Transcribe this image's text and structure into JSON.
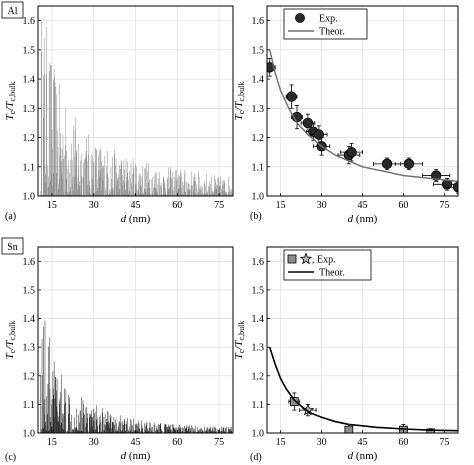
{
  "elements": [
    "Al",
    "Sn"
  ],
  "panel_letters": [
    "(a)",
    "(b)",
    "(c)",
    "(d)"
  ],
  "colors": {
    "al_bars": "#8a8a8a",
    "sn_bars": "#222222",
    "theory_b": "#6e6e6e",
    "theory_d": "#000000",
    "marker_circle": "#2a2a2a",
    "marker_square": "#8c8c8c",
    "marker_star": "#b8b8b8"
  },
  "chart_data": [
    {
      "id": "a",
      "type": "bar",
      "element": "Al",
      "xlabel_var": "d",
      "xlabel_unit": " (nm)",
      "ylabel_main": "T",
      "ylabel_sub1": "c",
      "ylabel_mid": "/T",
      "ylabel_sub2": "c,bulk",
      "xlim": [
        10,
        80
      ],
      "ylim": [
        1.0,
        1.65
      ],
      "xticks": [
        "15",
        "30",
        "45",
        "60",
        "75"
      ],
      "yticks": [
        "1.0",
        "1.1",
        "1.2",
        "1.3",
        "1.4",
        "1.5",
        "1.6"
      ],
      "grid": true,
      "dx": 0.15,
      "x_start": 11.0,
      "x_end": 80.0,
      "envelope": [
        [
          11.0,
          1.66
        ],
        [
          13.0,
          1.6
        ],
        [
          15.0,
          1.48
        ],
        [
          17.0,
          1.4
        ],
        [
          20.0,
          1.33
        ],
        [
          25.0,
          1.25
        ],
        [
          30.0,
          1.2
        ],
        [
          35.0,
          1.17
        ],
        [
          40.0,
          1.15
        ],
        [
          45.0,
          1.13
        ],
        [
          50.0,
          1.12
        ],
        [
          55.0,
          1.1
        ],
        [
          60.0,
          1.1
        ],
        [
          65.0,
          1.09
        ],
        [
          70.0,
          1.08
        ],
        [
          75.0,
          1.07
        ],
        [
          80.0,
          1.07
        ]
      ]
    },
    {
      "id": "b",
      "type": "scatter",
      "element": "Al",
      "xlabel_var": "d",
      "xlabel_unit": " (nm)",
      "ylabel_main": "T",
      "ylabel_sub1": "c",
      "ylabel_mid": "/T",
      "ylabel_sub2": "c,bulk",
      "xlim": [
        10,
        80
      ],
      "ylim": [
        1.0,
        1.65
      ],
      "xticks": [
        "15",
        "30",
        "45",
        "60",
        "75"
      ],
      "yticks": [
        "1.0",
        "1.1",
        "1.2",
        "1.3",
        "1.4",
        "1.5",
        "1.6"
      ],
      "grid": true,
      "legend_position": "top-right",
      "series": [
        {
          "name": "Exp.",
          "marker": "circle",
          "points": [
            {
              "x": 11.0,
              "y": 1.44,
              "xerr": 2.0,
              "yerr": 0.03
            },
            {
              "x": 19.0,
              "y": 1.34,
              "xerr": 2.0,
              "yerr": 0.04
            },
            {
              "x": 21.0,
              "y": 1.27,
              "xerr": 2.0,
              "yerr": 0.04
            },
            {
              "x": 25.0,
              "y": 1.25,
              "xerr": 2.5,
              "yerr": 0.03
            },
            {
              "x": 27.0,
              "y": 1.22,
              "xerr": 2.5,
              "yerr": 0.03
            },
            {
              "x": 29.0,
              "y": 1.21,
              "xerr": 3.0,
              "yerr": 0.03
            },
            {
              "x": 30.0,
              "y": 1.17,
              "xerr": 3.0,
              "yerr": 0.03
            },
            {
              "x": 40.0,
              "y": 1.14,
              "xerr": 4.0,
              "yerr": 0.03
            },
            {
              "x": 41.0,
              "y": 1.15,
              "xerr": 4.0,
              "yerr": 0.03
            },
            {
              "x": 54.0,
              "y": 1.11,
              "xerr": 5.0,
              "yerr": 0.02
            },
            {
              "x": 62.0,
              "y": 1.11,
              "xerr": 5.0,
              "yerr": 0.02
            },
            {
              "x": 72.0,
              "y": 1.07,
              "xerr": 5.0,
              "yerr": 0.02
            },
            {
              "x": 76.0,
              "y": 1.04,
              "xerr": 5.0,
              "yerr": 0.02
            },
            {
              "x": 80.0,
              "y": 1.03,
              "xerr": 5.0,
              "yerr": 0.02
            }
          ]
        },
        {
          "name": "Theor.",
          "type": "line",
          "points": [
            [
              11,
              1.5
            ],
            [
              13,
              1.42
            ],
            [
              15,
              1.36
            ],
            [
              18,
              1.3
            ],
            [
              21,
              1.25
            ],
            [
              25,
              1.21
            ],
            [
              30,
              1.17
            ],
            [
              35,
              1.14
            ],
            [
              40,
              1.12
            ],
            [
              45,
              1.1
            ],
            [
              50,
              1.09
            ],
            [
              55,
              1.08
            ],
            [
              60,
              1.07
            ],
            [
              65,
              1.065
            ],
            [
              70,
              1.06
            ],
            [
              75,
              1.055
            ],
            [
              80,
              1.05
            ]
          ]
        }
      ]
    },
    {
      "id": "c",
      "type": "bar",
      "element": "Sn",
      "xlabel_var": "d",
      "xlabel_unit": " (nm)",
      "ylabel_main": "T",
      "ylabel_sub1": "c",
      "ylabel_mid": "/T",
      "ylabel_sub2": "c,bulk",
      "xlim": [
        10,
        80
      ],
      "ylim": [
        1.0,
        1.65
      ],
      "xticks": [
        "15",
        "30",
        "45",
        "60",
        "75"
      ],
      "yticks": [
        "1.0",
        "1.1",
        "1.2",
        "1.3",
        "1.4",
        "1.5",
        "1.6"
      ],
      "grid": true,
      "dx": 0.15,
      "x_start": 11.0,
      "x_end": 80.0,
      "envelope": [
        [
          11.0,
          1.55
        ],
        [
          13.0,
          1.38
        ],
        [
          15.0,
          1.3
        ],
        [
          18.0,
          1.22
        ],
        [
          20.0,
          1.18
        ],
        [
          25.0,
          1.14
        ],
        [
          30.0,
          1.11
        ],
        [
          35.0,
          1.08
        ],
        [
          40.0,
          1.06
        ],
        [
          45.0,
          1.05
        ],
        [
          50.0,
          1.04
        ],
        [
          60.0,
          1.03
        ],
        [
          70.0,
          1.025
        ],
        [
          80.0,
          1.02
        ]
      ]
    },
    {
      "id": "d",
      "type": "scatter",
      "element": "Sn",
      "xlabel_var": "d",
      "xlabel_unit": " (nm)",
      "ylabel_main": "T",
      "ylabel_sub1": "c",
      "ylabel_mid": "/T",
      "ylabel_sub2": "c,bulk",
      "xlim": [
        10,
        80
      ],
      "ylim": [
        1.0,
        1.65
      ],
      "xticks": [
        "15",
        "30",
        "45",
        "60",
        "75"
      ],
      "yticks": [
        "1.0",
        "1.1",
        "1.2",
        "1.3",
        "1.4",
        "1.5",
        "1.6"
      ],
      "grid": true,
      "legend_position": "top-right",
      "legend_label": ", Exp.",
      "series": [
        {
          "name": "Exp.",
          "marker": "square",
          "points": [
            {
              "x": 20.0,
              "y": 1.11,
              "xerr": 2.0,
              "yerr": 0.03
            },
            {
              "x": 40.0,
              "y": 1.01,
              "xerr": 0,
              "yerr": 0.02
            },
            {
              "x": 60.0,
              "y": 1.01,
              "xerr": 0,
              "yerr": 0.02
            },
            {
              "x": 70.0,
              "y": 1.0,
              "xerr": 0,
              "yerr": 0.015
            }
          ]
        },
        {
          "name": "Exp.",
          "marker": "star",
          "points": [
            {
              "x": 25.0,
              "y": 1.08,
              "xerr": 3.0,
              "yerr": 0.02
            }
          ]
        },
        {
          "name": "Theor.",
          "type": "line",
          "points": [
            [
              11,
              1.3
            ],
            [
              13,
              1.24
            ],
            [
              15,
              1.19
            ],
            [
              17,
              1.155
            ],
            [
              20,
              1.115
            ],
            [
              23,
              1.09
            ],
            [
              26,
              1.07
            ],
            [
              30,
              1.055
            ],
            [
              35,
              1.04
            ],
            [
              40,
              1.03
            ],
            [
              45,
              1.025
            ],
            [
              50,
              1.02
            ],
            [
              60,
              1.014
            ],
            [
              70,
              1.01
            ],
            [
              80,
              1.008
            ]
          ]
        }
      ]
    }
  ]
}
